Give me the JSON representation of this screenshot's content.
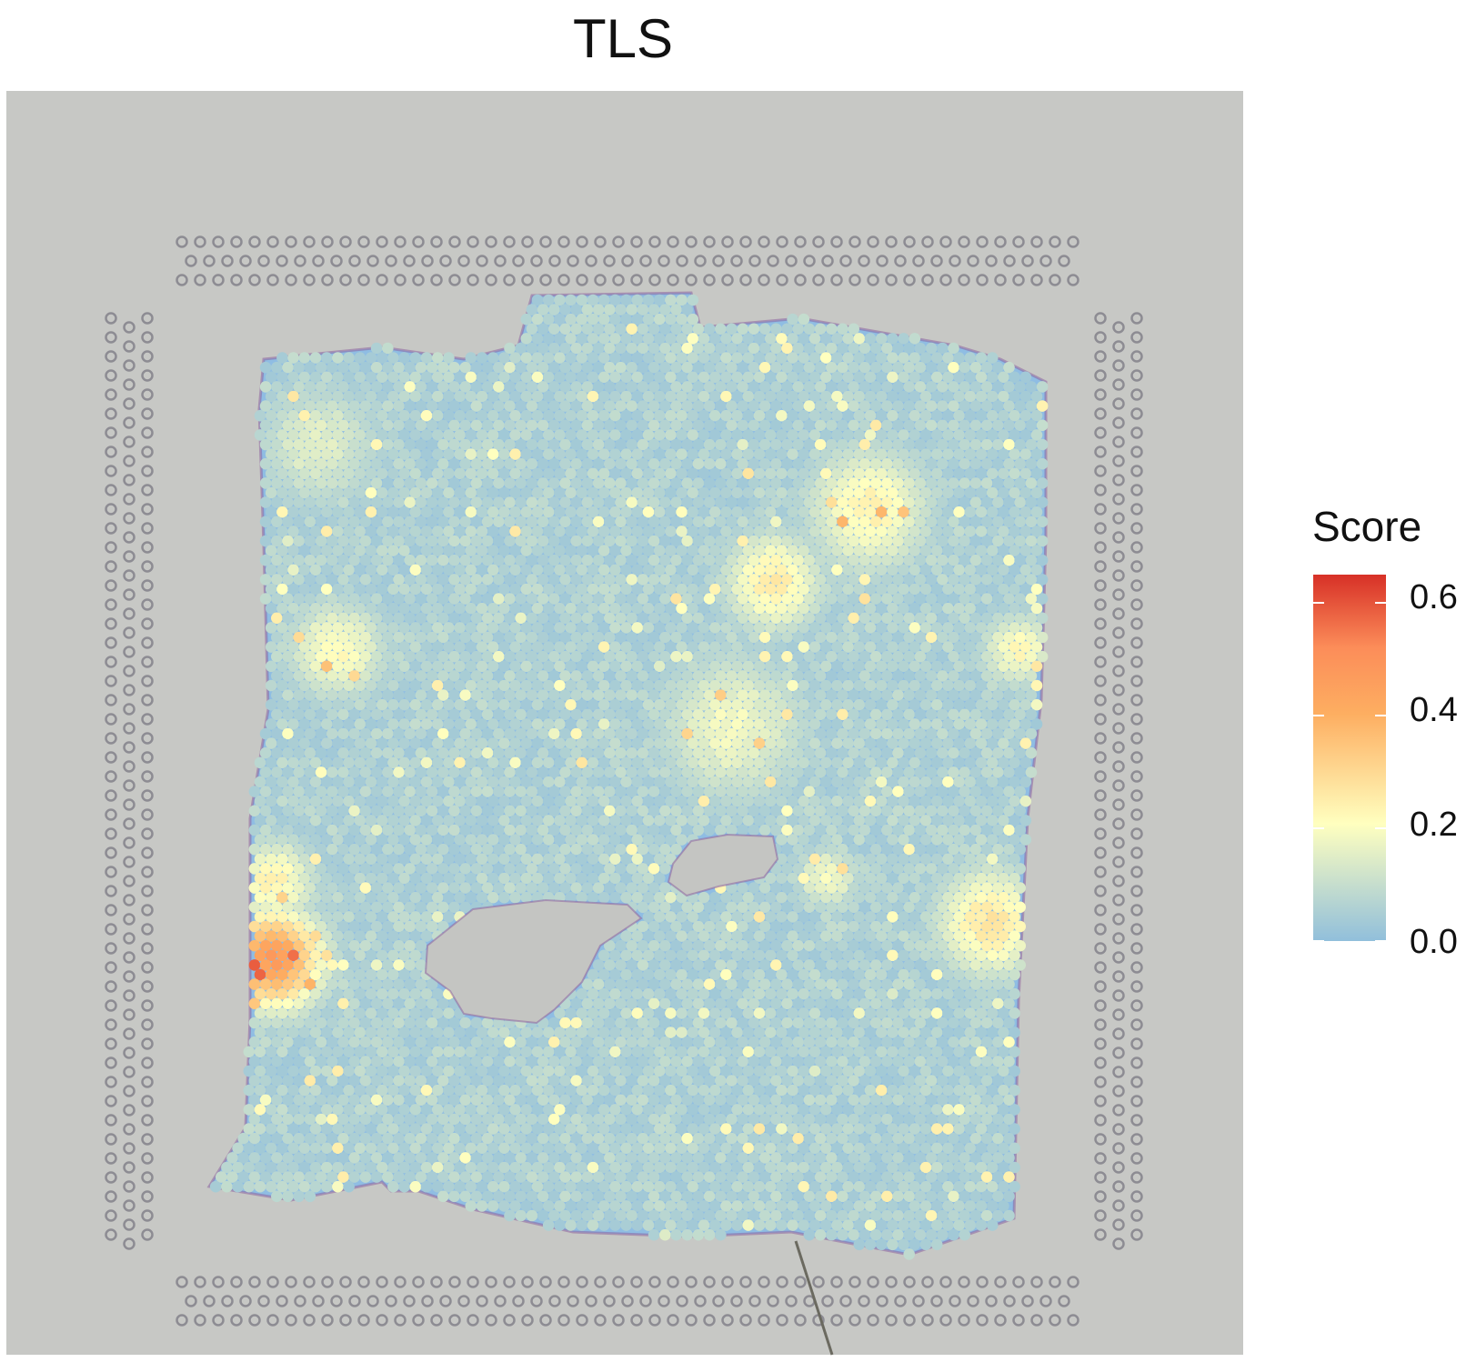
{
  "chart_data": {
    "type": "scatter",
    "subtype": "spatial-spot-heatmap",
    "title": "TLS",
    "xlabel": "",
    "ylabel": "",
    "grid": false,
    "background": "tissue histology image",
    "legend": {
      "title": "Score",
      "position": "right",
      "range": [
        0.0,
        0.65
      ],
      "ticks": [
        0.0,
        0.2,
        0.4,
        0.6
      ],
      "tick_labels": [
        "0.0",
        "0.2",
        "0.4",
        "0.6"
      ],
      "colors": [
        "#91bfdb",
        "#ffffbf",
        "#fdae61",
        "#fc8d59",
        "#d73027"
      ]
    },
    "notable_values": [
      {
        "region": "left edge, lower-middle (max)",
        "score": 0.62
      },
      {
        "region": "left edge cluster",
        "score": 0.45
      },
      {
        "region": "right-middle cluster",
        "score": 0.25
      },
      {
        "region": "upper-right scattered",
        "score": 0.25
      },
      {
        "region": "background tissue",
        "score": 0.05
      }
    ]
  }
}
